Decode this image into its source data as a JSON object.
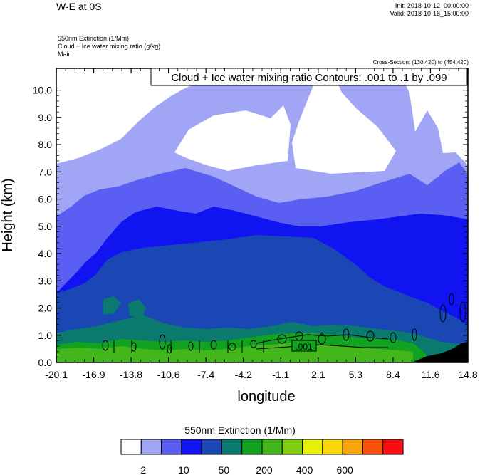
{
  "header": {
    "title": "W-E at 0S",
    "init": "Init: 2018-10-12_00:00:00",
    "valid": "Valid: 2018-10-18_15:00:00",
    "field_lines": [
      "550nm Extinction   (1/Mm)",
      "Cloud + Ice water mixing ratio   (g/kg)",
      "Main"
    ],
    "cross_section": "Cross-Section: (130,420) to (454,420)"
  },
  "chart_data": {
    "type": "heatmap",
    "xlabel": "longitude",
    "ylabel": "Height (km)",
    "contour_label": "Cloud + Ice water mixing ratio Contours: .001 to .1 by .099",
    "contour_value_label": ".001",
    "x_ticks": [
      "-20.1",
      "-16.9",
      "-13.8",
      "-10.6",
      "-7.4",
      "-4.2",
      "-1.1",
      "2.1",
      "5.3",
      "8.4",
      "11.6",
      "14.8"
    ],
    "x_range": [
      -20.1,
      14.8
    ],
    "y_ticks": [
      "0.0",
      "1.0",
      "2.0",
      "3.0",
      "4.0",
      "5.0",
      "6.0",
      "7.0",
      "8.0",
      "9.0",
      "10.0"
    ],
    "y_range": [
      0,
      10.8
    ],
    "colorbar": {
      "title": "550nm Extinction  (1/Mm)",
      "colors": [
        "#ffffff",
        "#a0a5f5",
        "#5b5ef3",
        "#0f14f0",
        "#1a47b4",
        "#0a7a6e",
        "#11a31f",
        "#43b61b",
        "#80cd12",
        "#e8ef06",
        "#fbd60a",
        "#f8a40b",
        "#f8520d",
        "#f90d12"
      ],
      "tick_labels": [
        "2",
        "10",
        "50",
        "200",
        "400",
        "600"
      ]
    }
  }
}
